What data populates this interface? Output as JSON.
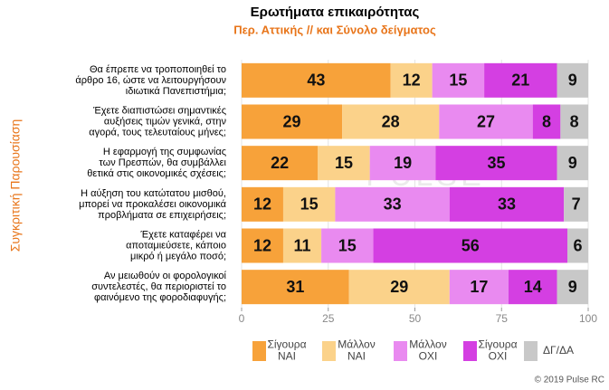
{
  "chart_data": {
    "type": "stacked-bar-horizontal",
    "title": "Ερωτήματα επικαιρότητας",
    "subtitle": "Περ. Αττικής // και Σύνολο δείγματος",
    "y_axis_label": "Συγκριτική Παρουσίαση",
    "watermark": "PULSE",
    "footer": "© 2019 Pulse RC",
    "categories": [
      "Θα έπρεπε να τροποποιηθεί το\nάρθρο 16, ώστε να λειτουργήσουν\nιδιωτικά Πανεπιστήμια;",
      "Έχετε διαπιστώσει σημαντικές\nαυξήσεις τιμών γενικά, στην\nαγορά, τους τελευταίους μήνες;",
      "Η εφαρμογή της συμφωνίας\nτων Πρεσπών, θα συμβάλλει\nθετικά στις οικονομικές σχέσεις;",
      "Η αύξηση του κατώτατου μισθού,\nμπορεί να προκαλέσει οικονομικά\nπροβλήματα σε επιχειρήσεις;",
      "Έχετε καταφέρει να\nαποταμιεύσετε, κάποιο\nμικρό ή μεγάλο ποσό;",
      "Αν μειωθούν οι φορολογικοί\nσυντελεστές, θα περιοριστεί το\nφαινόμενο της φοροδιαφυγής;"
    ],
    "series": [
      {
        "name": "Σίγουρα\nΝΑΙ",
        "color": "#f7a23a",
        "values": [
          43,
          29,
          22,
          12,
          12,
          31
        ]
      },
      {
        "name": "Μάλλον\nΝΑΙ",
        "color": "#fbd28a",
        "values": [
          12,
          28,
          15,
          15,
          11,
          29
        ]
      },
      {
        "name": "Μάλλον\nΟΧΙ",
        "color": "#e98af0",
        "values": [
          15,
          27,
          19,
          33,
          15,
          17
        ]
      },
      {
        "name": "Σίγουρα\nΟΧΙ",
        "color": "#d43fe2",
        "values": [
          21,
          8,
          35,
          33,
          56,
          14
        ]
      },
      {
        "name": "ΔΓ/ΔΑ",
        "color": "#c8c8c8",
        "values": [
          9,
          8,
          9,
          7,
          6,
          9
        ]
      }
    ],
    "xlim": [
      0,
      100
    ],
    "xticks": [
      0,
      25,
      50,
      75,
      100
    ],
    "grid": true
  }
}
